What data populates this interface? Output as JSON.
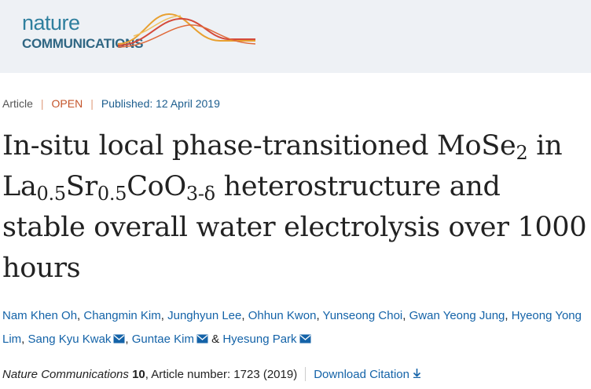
{
  "header": {
    "logo_top": "nature",
    "logo_bottom": "COMMUNICATIONS"
  },
  "meta": {
    "type": "Article",
    "access": "OPEN",
    "published": "Published: 12 April 2019",
    "divider": "|"
  },
  "title": [
    {
      "text": "In-situ local phase-transitioned MoSe"
    },
    {
      "sub": "2"
    },
    {
      "text": " in La"
    },
    {
      "sub": "0.5"
    },
    {
      "text": "Sr"
    },
    {
      "sub": "0.5"
    },
    {
      "text": "CoO"
    },
    {
      "sub": "3-δ"
    },
    {
      "text": " heterostructure and stable overall water electrolysis over 1000 hours"
    }
  ],
  "authors": [
    {
      "name": "Nam Khen Oh",
      "email": false
    },
    {
      "name": "Changmin Kim",
      "email": false
    },
    {
      "name": "Junghyun Lee",
      "email": false
    },
    {
      "name": "Ohhun Kwon",
      "email": false
    },
    {
      "name": "Yunseong Choi",
      "email": false
    },
    {
      "name": "Gwan Yeong Jung",
      "email": false
    },
    {
      "name": "Hyeong Yong Lim",
      "email": false
    },
    {
      "name": "Sang Kyu Kwak",
      "email": true
    },
    {
      "name": "Guntae Kim",
      "email": true
    },
    {
      "name": "Hyesung Park",
      "email": true
    }
  ],
  "author_separator": ",",
  "author_last_separator": "&",
  "citation": {
    "journal": "Nature Communications",
    "volume": "10",
    "rest": ", Article number: 1723 (2019)",
    "download": "Download Citation"
  }
}
